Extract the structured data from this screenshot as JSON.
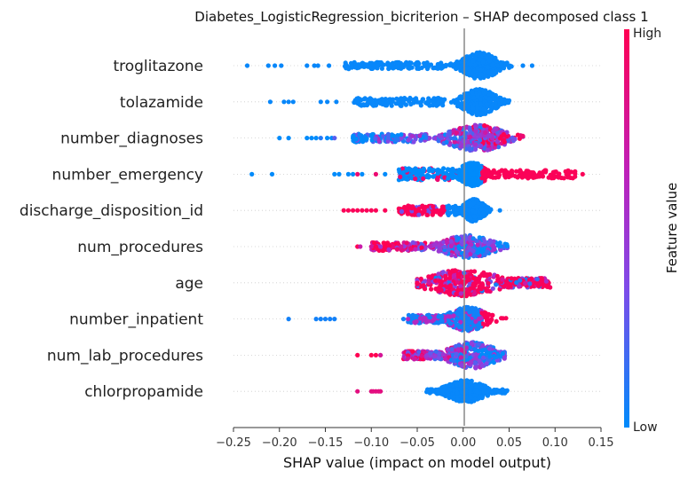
{
  "chart_data": {
    "type": "scatter",
    "subtype": "shap-beeswarm",
    "title": "Diabetes_LogisticRegression_bicriterion – SHAP decomposed class 1",
    "xlabel": "SHAP value (impact on model output)",
    "xlim": [
      -0.25,
      0.15
    ],
    "xticks": [
      -0.25,
      -0.2,
      -0.15,
      -0.1,
      -0.05,
      0.0,
      0.05,
      0.1,
      0.15
    ],
    "xtick_labels": [
      "−0.25",
      "−0.20",
      "−0.15",
      "−0.10",
      "−0.05",
      "0.00",
      "0.05",
      "0.10",
      "0.15"
    ],
    "grid": false,
    "colorbar": {
      "label": "Feature value",
      "high_label": "High",
      "low_label": "Low",
      "colors": [
        "#008bfb",
        "#7e4be9",
        "#c020b8",
        "#ff0052"
      ]
    },
    "features": [
      {
        "name": "troglitazone",
        "core": {
          "center": 0.018,
          "spread": 0.014,
          "height": 1.0,
          "min": -0.06,
          "max": 0.06
        },
        "bulk": {
          "from": -0.13,
          "to": -0.02,
          "thin": 0.25
        },
        "outliers": [
          -0.235,
          -0.212,
          -0.205,
          -0.198,
          -0.17,
          -0.162,
          -0.158,
          -0.146,
          0.065,
          0.075
        ],
        "coloring": "low"
      },
      {
        "name": "tolazamide",
        "core": {
          "center": 0.017,
          "spread": 0.013,
          "height": 1.0,
          "min": -0.05,
          "max": 0.05
        },
        "bulk": {
          "from": -0.12,
          "to": -0.02,
          "thin": 0.3
        },
        "outliers": [
          -0.21,
          -0.195,
          -0.19,
          -0.185,
          -0.155,
          -0.148,
          -0.138,
          -0.118
        ],
        "coloring": "low"
      },
      {
        "name": "number_diagnoses",
        "core": {
          "center": 0.015,
          "spread": 0.022,
          "height": 1.0,
          "min": -0.06,
          "max": 0.065
        },
        "bulk": {
          "from": -0.12,
          "to": -0.04,
          "thin": 0.3
        },
        "outliers": [
          -0.2,
          -0.19,
          -0.17,
          -0.165,
          -0.16,
          -0.155,
          -0.148,
          -0.143,
          -0.14,
          -0.12
        ],
        "coloring": "mixed-right-high"
      },
      {
        "name": "number_emergency",
        "core": {
          "center": 0.01,
          "spread": 0.01,
          "height": 0.9,
          "min": -0.02,
          "max": 0.03
        },
        "bulk": {
          "from": -0.07,
          "to": -0.01,
          "thin": 0.45
        },
        "right_tail": {
          "from": 0.02,
          "to": 0.125,
          "thin": 0.3
        },
        "outliers": [
          -0.23,
          -0.208,
          -0.14,
          -0.135,
          -0.125,
          -0.12,
          -0.115,
          -0.11,
          -0.095,
          -0.085,
          0.13
        ],
        "coloring": "emergency"
      },
      {
        "name": "discharge_disposition_id",
        "core": {
          "center": 0.012,
          "spread": 0.008,
          "height": 0.85,
          "min": -0.01,
          "max": 0.03
        },
        "bulk": {
          "from": -0.07,
          "to": -0.005,
          "thin": 0.35
        },
        "outliers": [
          -0.13,
          -0.125,
          -0.12,
          -0.115,
          -0.11,
          -0.105,
          -0.1,
          -0.095,
          -0.085,
          0.04
        ],
        "coloring": "discharge"
      },
      {
        "name": "num_procedures",
        "core": {
          "center": 0.005,
          "spread": 0.02,
          "height": 0.85,
          "min": -0.06,
          "max": 0.048
        },
        "bulk": {
          "from": -0.1,
          "to": -0.04,
          "thin": 0.3
        },
        "outliers": [
          -0.115,
          -0.112,
          -0.1,
          -0.095,
          -0.09
        ],
        "coloring": "mixed-left-high"
      },
      {
        "name": "age",
        "core": {
          "center": 0.0,
          "spread": 0.028,
          "height": 1.0,
          "min": -0.05,
          "max": 0.095
        },
        "bulk": {
          "from": 0.04,
          "to": 0.095,
          "thin": 0.35
        },
        "outliers": [],
        "coloring": "age"
      },
      {
        "name": "number_inpatient",
        "core": {
          "center": 0.005,
          "spread": 0.015,
          "height": 0.9,
          "min": -0.06,
          "max": 0.055
        },
        "bulk": {
          "from": -0.06,
          "to": -0.02,
          "thin": 0.3
        },
        "outliers": [
          -0.19,
          -0.16,
          -0.155,
          -0.15,
          -0.145,
          -0.14,
          -0.065,
          -0.06
        ],
        "coloring": "inpatient"
      },
      {
        "name": "num_lab_procedures",
        "core": {
          "center": 0.01,
          "spread": 0.018,
          "height": 1.0,
          "min": -0.065,
          "max": 0.045
        },
        "bulk": {
          "from": -0.065,
          "to": -0.02,
          "thin": 0.3
        },
        "outliers": [
          -0.115,
          -0.1,
          -0.095,
          -0.09
        ],
        "coloring": "mixed-left-high"
      },
      {
        "name": "chlorpropamide",
        "core": {
          "center": 0.003,
          "spread": 0.015,
          "height": 0.85,
          "min": -0.04,
          "max": 0.048
        },
        "bulk": {
          "from": -0.04,
          "to": 0.048,
          "thin": 0.15
        },
        "outliers": [
          -0.115,
          -0.1,
          -0.098,
          -0.095,
          -0.092,
          -0.09
        ],
        "coloring": "chlor"
      }
    ]
  }
}
